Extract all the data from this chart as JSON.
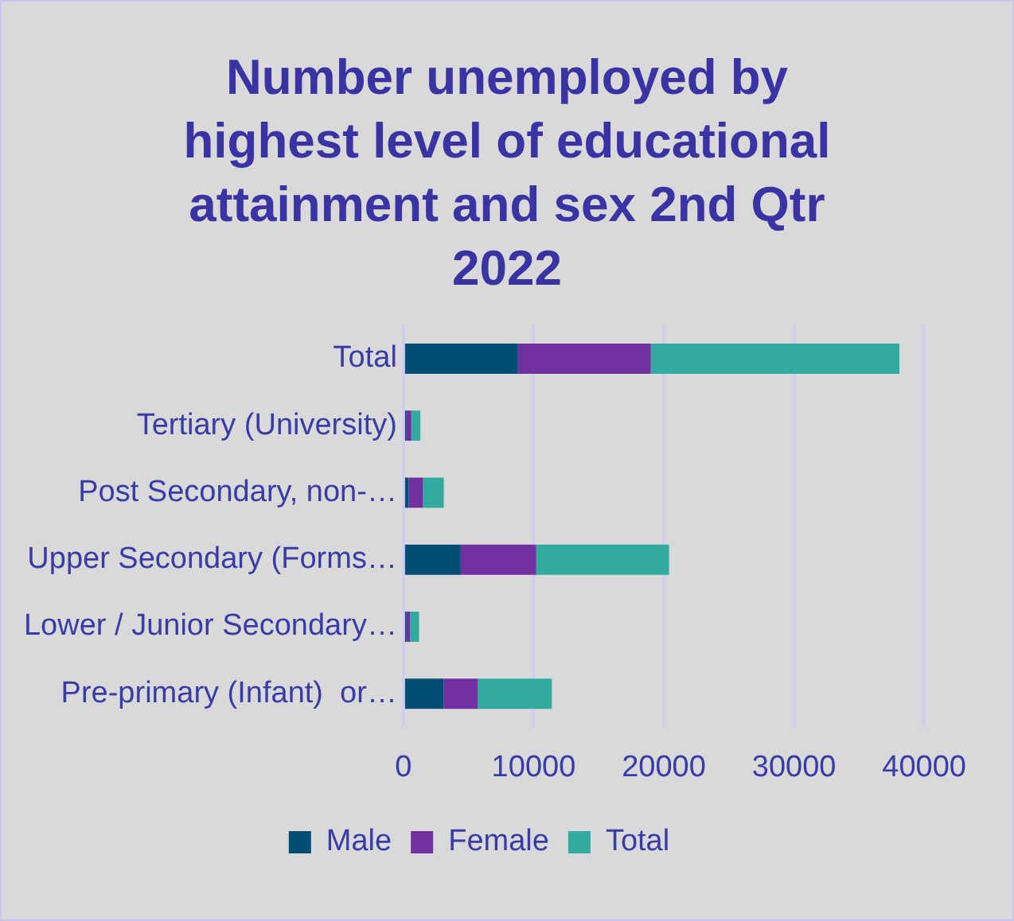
{
  "chart_data": {
    "type": "bar",
    "orientation": "horizontal",
    "stacked": true,
    "title": "Number unemployed by highest level of educational attainment and sex 2nd Qtr 2022",
    "categories": [
      "Total",
      "Tertiary (University)",
      "Post Secondary, non-…",
      "Upper Secondary (Forms…",
      "Lower / Junior Secondary…",
      "Pre-primary (Infant)  or…"
    ],
    "series": [
      {
        "name": "Male",
        "color": "#004e75",
        "values": [
          8800,
          200,
          400,
          4400,
          200,
          3100
        ]
      },
      {
        "name": "Female",
        "color": "#7030a0",
        "values": [
          10200,
          400,
          1100,
          5800,
          300,
          2600
        ]
      },
      {
        "name": "Total",
        "color": "#33aaa0",
        "values": [
          19100,
          700,
          1600,
          10200,
          700,
          5700
        ]
      }
    ],
    "xlim": [
      0,
      40000
    ],
    "xticks": [
      0,
      10000,
      20000,
      30000,
      40000
    ],
    "grid": "x",
    "legend": "bottom"
  }
}
